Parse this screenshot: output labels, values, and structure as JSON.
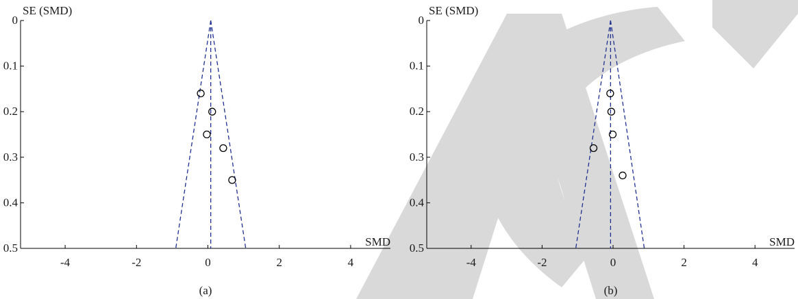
{
  "watermark": {
    "text": "RETRACTED",
    "color": "#d9d9d9"
  },
  "colors": {
    "funnel": "#1f2f8f",
    "axis": "#000000",
    "point": "#000000"
  },
  "chart_data": [
    {
      "type": "scatter",
      "subtype": "funnel-plot",
      "panel_label": "(a)",
      "xlabel": "SMD",
      "ylabel": "SE (SMD)",
      "xlim": [
        -5,
        5
      ],
      "ylim": [
        0,
        0.5
      ],
      "y_inverted": true,
      "xticks": [
        -4,
        -2,
        0,
        2,
        4
      ],
      "xtick_labels": [
        "-4",
        "-2",
        "0",
        "2",
        "4"
      ],
      "yticks": [
        0,
        0.1,
        0.2,
        0.3,
        0.4,
        0.5
      ],
      "ytick_labels": [
        "0",
        "0.1",
        "0.2",
        "0.3",
        "0.4",
        "0.5"
      ],
      "pooled_estimate": 0.08,
      "funnel_base": [
        -0.9,
        1.06
      ],
      "points": [
        {
          "x": -0.2,
          "y": 0.16
        },
        {
          "x": 0.12,
          "y": 0.2
        },
        {
          "x": -0.03,
          "y": 0.25
        },
        {
          "x": 0.43,
          "y": 0.28
        },
        {
          "x": 0.68,
          "y": 0.35
        }
      ],
      "grid": false
    },
    {
      "type": "scatter",
      "subtype": "funnel-plot",
      "panel_label": "(b)",
      "xlabel": "SMD",
      "ylabel": "SE (SMD)",
      "xlim": [
        -5,
        5
      ],
      "ylim": [
        0,
        0.5
      ],
      "y_inverted": true,
      "xticks": [
        -4,
        -2,
        0,
        2,
        4
      ],
      "xtick_labels": [
        "-4",
        "-2",
        "0",
        "2",
        "4"
      ],
      "yticks": [
        0,
        0.1,
        0.2,
        0.3,
        0.4,
        0.5
      ],
      "ytick_labels": [
        "0",
        "0.1",
        "0.2",
        "0.3",
        "0.4",
        "0.5"
      ],
      "pooled_estimate": -0.07,
      "funnel_base": [
        -1.05,
        0.88
      ],
      "points": [
        {
          "x": -0.08,
          "y": 0.16
        },
        {
          "x": -0.05,
          "y": 0.2
        },
        {
          "x": -0.01,
          "y": 0.25
        },
        {
          "x": -0.55,
          "y": 0.28
        },
        {
          "x": 0.27,
          "y": 0.34
        }
      ],
      "grid": false
    }
  ]
}
